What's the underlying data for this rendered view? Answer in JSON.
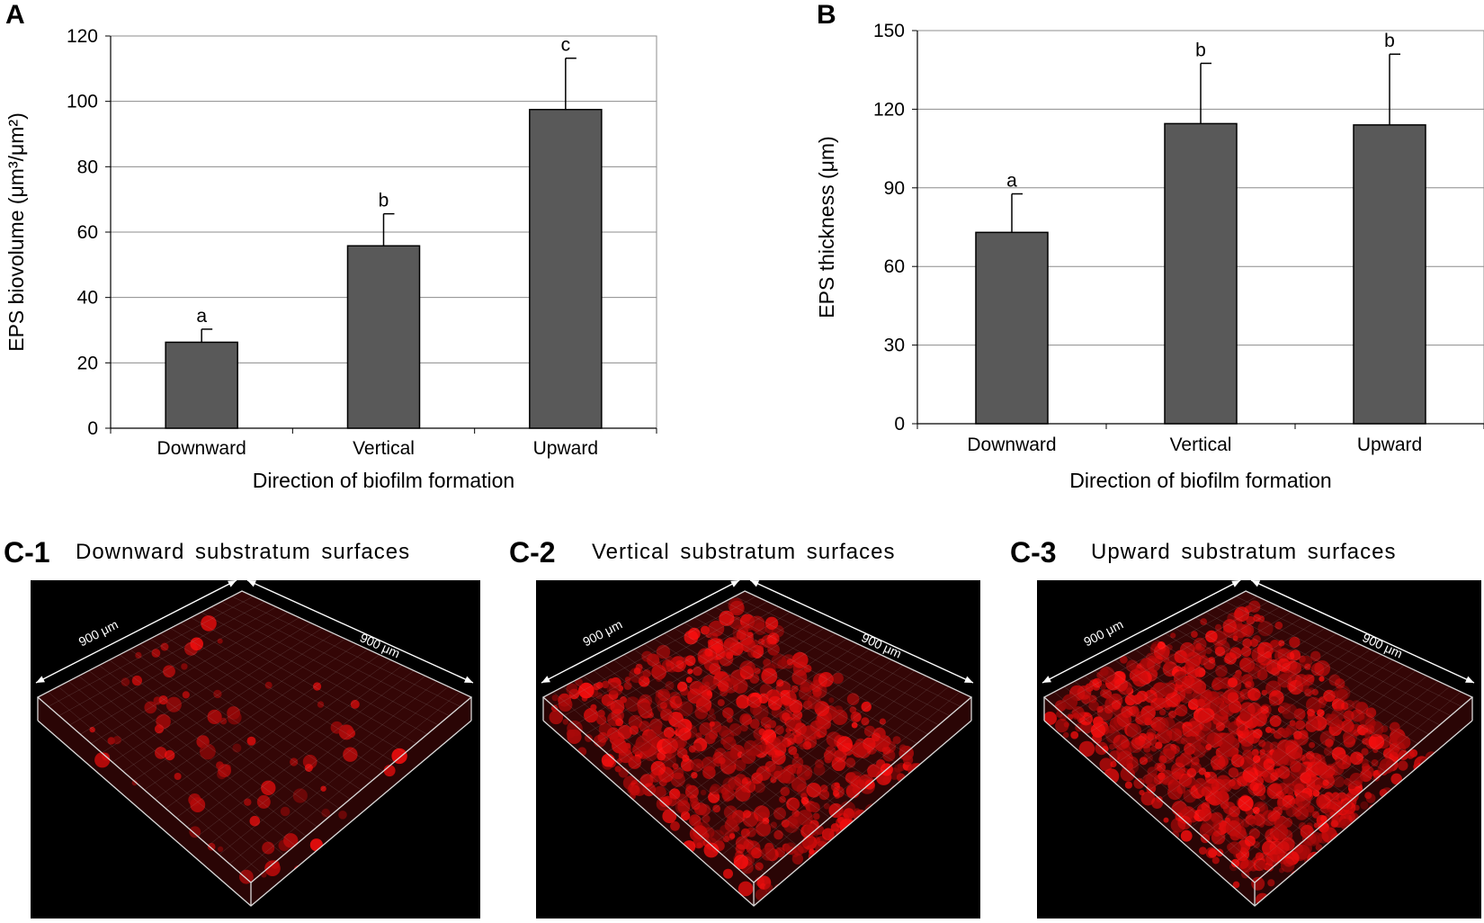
{
  "chart_data": [
    {
      "panel": "A",
      "type": "bar",
      "categories": [
        "Downward",
        "Vertical",
        "Upward"
      ],
      "values": [
        26.3,
        55.8,
        97.5
      ],
      "errors": [
        4.0,
        9.8,
        15.7
      ],
      "significance": [
        "a",
        "b",
        "c"
      ],
      "xlabel": "Direction of biofilm formation",
      "ylabel": "EPS biovolume (μm³/μm²)",
      "ylim": [
        0,
        120
      ],
      "yticks": [
        0,
        20,
        40,
        60,
        80,
        100,
        120
      ],
      "grid": true,
      "bar_color": "#595959"
    },
    {
      "panel": "B",
      "type": "bar",
      "categories": [
        "Downward",
        "Vertical",
        "Upward"
      ],
      "values": [
        73.0,
        114.5,
        114.0
      ],
      "errors": [
        14.7,
        23.0,
        27.0
      ],
      "significance": [
        "a",
        "b",
        "b"
      ],
      "xlabel": "Direction of biofilm formation",
      "ylabel": "EPS thickness (μm)",
      "ylim": [
        0,
        150
      ],
      "yticks": [
        0,
        30,
        60,
        90,
        120,
        150
      ],
      "grid": true,
      "bar_color": "#595959"
    }
  ],
  "images": [
    {
      "label": "C-1",
      "title": "Downward substratum surfaces",
      "scale_left": "900 μm",
      "scale_right": "900 μm",
      "coverage": 0.05
    },
    {
      "label": "C-2",
      "title": "Vertical substratum surfaces",
      "scale_left": "900 μm",
      "scale_right": "900 μm",
      "coverage": 0.55
    },
    {
      "label": "C-3",
      "title": "Upward substratum surfaces",
      "scale_left": "900 μm",
      "scale_right": "900 μm",
      "coverage": 0.75
    }
  ]
}
